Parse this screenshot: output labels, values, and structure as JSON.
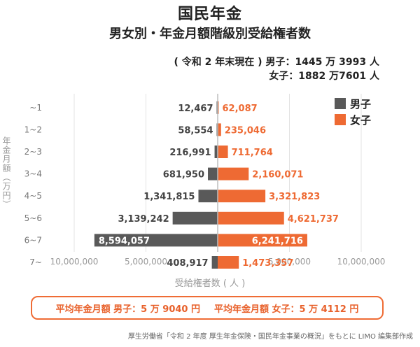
{
  "title": "国民年金",
  "subtitle": "男女別・年金月額階級別受給権者数",
  "as_of_line1": "( 令和 2 年末現在 ) 男子：1445 万 3993 人",
  "as_of_line2": "女子：1882 万7601 人",
  "summary_male": "平均年金月額 男子：5 万 9040 円",
  "summary_female": "平均年金月額 女子：5 万 4112 円",
  "source": "厚生労働省「令和 2 年度 厚生年金保険・国民年金事業の概況」をもとに LIMO 編集部作成",
  "colors": {
    "male": "#595959",
    "female": "#ee6a33",
    "male_label_in": "#ffffff",
    "female_label_in": "#ffffff"
  },
  "chart_data": {
    "type": "bar",
    "orientation": "horizontal-diverging",
    "title": "男女別・年金月額階級別受給権者数",
    "xlabel": "受給権者数 ( 人 )",
    "ylabel": "年金月額（万円）",
    "categories": [
      "~1",
      "1~2",
      "2~3",
      "3~4",
      "4~5",
      "5~6",
      "6~7",
      "7~"
    ],
    "series": [
      {
        "name": "男子",
        "values": [
          12467,
          58554,
          216991,
          681950,
          1341815,
          3139242,
          8594057,
          408917
        ],
        "labels": [
          "12,467",
          "58,554",
          "216,991",
          "681,950",
          "1,341,815",
          "3,139,242",
          "8,594,057",
          "408,917"
        ]
      },
      {
        "name": "女子",
        "values": [
          62087,
          235046,
          711764,
          2160071,
          3321823,
          4621737,
          6241716,
          1473357
        ],
        "labels": [
          "62,087",
          "235,046",
          "711,764",
          "2,160,071",
          "3,321,823",
          "4,621,737",
          "6,241,716",
          "1,473,357"
        ]
      }
    ],
    "xlim": [
      -10000000,
      10000000
    ],
    "xticks": [
      -10000000,
      -5000000,
      0,
      5000000,
      10000000
    ],
    "xtick_labels": [
      "10,000,000",
      "5,000,000",
      "0",
      "5,000,000",
      "10,000,000"
    ],
    "legend_position": "top-right",
    "grid": "vertical"
  }
}
